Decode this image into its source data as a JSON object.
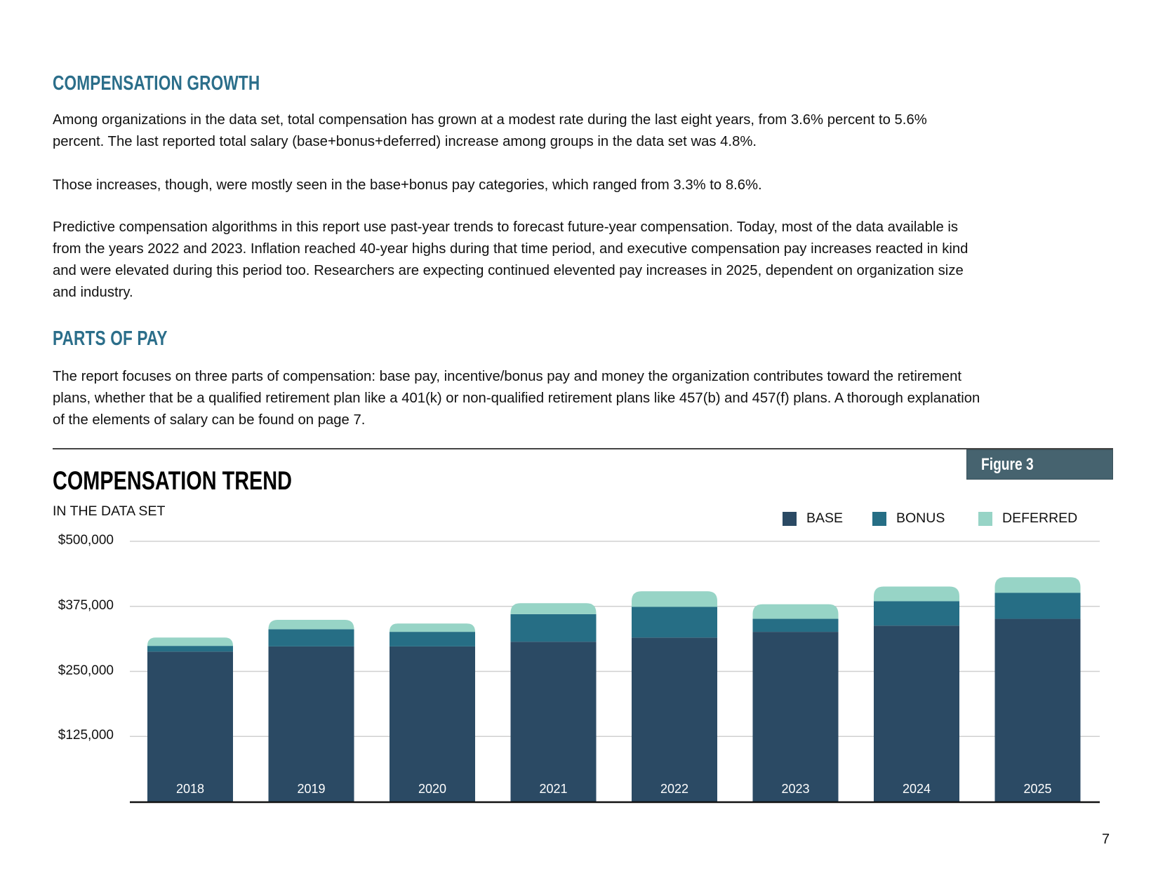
{
  "sections": {
    "growth_heading": "COMPENSATION GROWTH",
    "growth_p1": [
      "Among organizations in the data set, total compensation has grown at a modest rate during the last eight years, from 3.6% percent to 5.6%",
      "percent. The last reported total salary (base+bonus+deferred) increase among groups in the data set was 4.8%."
    ],
    "growth_p2": [
      "Those increases, though, were mostly seen in the base+bonus pay categories, which ranged from 3.3% to 8.6%."
    ],
    "growth_p3": [
      "Predictive compensation algorithms in this report use past-year trends to forecast future-year compensation. Today, most of the data available is",
      "from the years 2022 and 2023. Inflation reached 40-year highs during that time period, and executive compensation pay increases reacted in kind",
      "and were elevated during this period too.  Researchers are expecting continued elevented pay increases in 2025, dependent on organization size",
      "and industry."
    ],
    "parts_heading": "PARTS OF PAY",
    "parts_p1": [
      "The report focuses on three parts of compensation: base pay, incentive/bonus pay and money the organization contributes toward the retirement",
      "plans, whether that be a qualified retirement plan like a 401(k) or non-qualified retirement plans like 457(b) and 457(f) plans.  A thorough explanation",
      "of the elements of salary can be found on page 7."
    ]
  },
  "figure_label": "Figure 3",
  "page_number": "7",
  "chart_data": {
    "type": "bar",
    "stacked": true,
    "title": "COMPENSATION TREND",
    "subtitle": "IN THE DATA SET",
    "xlabel": "",
    "ylabel": "",
    "categories": [
      "2018",
      "2019",
      "2020",
      "2021",
      "2022",
      "2023",
      "2024",
      "2025"
    ],
    "series": [
      {
        "name": "BASE",
        "color": "#2b4a64",
        "values": [
          288000,
          298000,
          298000,
          307000,
          315000,
          326000,
          338000,
          351000
        ]
      },
      {
        "name": "BONUS",
        "color": "#266e85",
        "values": [
          11000,
          33000,
          28000,
          53000,
          59000,
          25000,
          47000,
          50000
        ]
      },
      {
        "name": "DEFERRED",
        "color": "#97d4c6",
        "values": [
          16000,
          18000,
          16000,
          21000,
          30000,
          28000,
          28000,
          30000
        ]
      }
    ],
    "yticks": [
      125000,
      250000,
      375000,
      500000
    ],
    "ytick_labels": [
      "$125,000",
      "$250,000",
      "$375,000",
      "$500,000"
    ],
    "ylim": [
      0,
      500000
    ],
    "grid": true,
    "legend_position": "top-right"
  }
}
